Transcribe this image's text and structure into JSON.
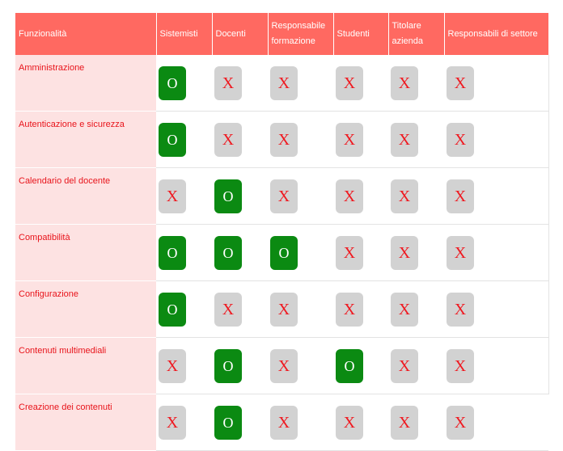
{
  "table": {
    "headers": [
      "Funzionalità",
      "Sistemisti",
      "Docenti",
      "Responsabile formazione",
      "Studenti",
      "Titolare azienda",
      "Responsabili di settore"
    ],
    "rows": [
      {
        "feature": "Amministrazione",
        "cells": [
          "O",
          "X",
          "X",
          "X",
          "X",
          "X"
        ]
      },
      {
        "feature": "Autenticazione e sicurezza",
        "cells": [
          "O",
          "X",
          "X",
          "X",
          "X",
          "X"
        ]
      },
      {
        "feature": "Calendario del docente",
        "cells": [
          "X",
          "O",
          "X",
          "X",
          "X",
          "X"
        ]
      },
      {
        "feature": "Compatibilità",
        "cells": [
          "O",
          "O",
          "O",
          "X",
          "X",
          "X"
        ]
      },
      {
        "feature": "Configurazione",
        "cells": [
          "O",
          "X",
          "X",
          "X",
          "X",
          "X"
        ]
      },
      {
        "feature": "Contenuti multimediali",
        "cells": [
          "X",
          "O",
          "X",
          "O",
          "X",
          "X"
        ]
      },
      {
        "feature": "Creazione dei contenuti",
        "cells": [
          "X",
          "O",
          "X",
          "X",
          "X",
          "X"
        ]
      }
    ]
  },
  "colors": {
    "header_bg": "#ff6961",
    "feature_bg": "#fde2e2",
    "feature_text": "#e8141b",
    "yes_bg": "#0b8a12",
    "no_bg": "#d2d2d2",
    "no_text": "#ef1a21"
  }
}
